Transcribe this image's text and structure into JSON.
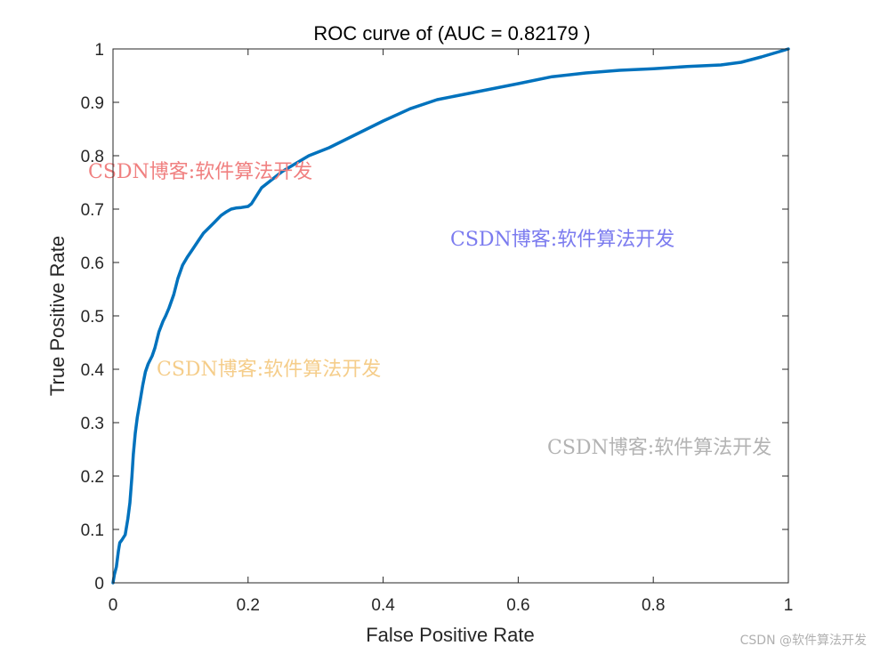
{
  "chart_data": {
    "type": "line",
    "title": "ROC curve of (AUC = 0.82179 )",
    "xlabel": "False Positive Rate",
    "ylabel": "True Positive Rate",
    "xlim": [
      0,
      1
    ],
    "ylim": [
      0,
      1
    ],
    "xticks": [
      0,
      0.2,
      0.4,
      0.6,
      0.8,
      1
    ],
    "yticks": [
      0,
      0.1,
      0.2,
      0.3,
      0.4,
      0.5,
      0.6,
      0.7,
      0.8,
      0.9,
      1
    ],
    "xtick_labels": [
      "0",
      "0.2",
      "0.4",
      "0.6",
      "0.8",
      "1"
    ],
    "ytick_labels": [
      "0",
      "0.1",
      "0.2",
      "0.3",
      "0.4",
      "0.5",
      "0.6",
      "0.7",
      "0.8",
      "0.9",
      "1"
    ],
    "grid": false,
    "line_color": "#0072BD",
    "series": [
      {
        "x": [
          0,
          0.002,
          0.005,
          0.008,
          0.01,
          0.013,
          0.018,
          0.022,
          0.025,
          0.028,
          0.03,
          0.033,
          0.036,
          0.04,
          0.044,
          0.048,
          0.052,
          0.058,
          0.062,
          0.068,
          0.074,
          0.078,
          0.083,
          0.09,
          0.096,
          0.103,
          0.11,
          0.118,
          0.126,
          0.134,
          0.142,
          0.15,
          0.16,
          0.168,
          0.175,
          0.182,
          0.19,
          0.2,
          0.205,
          0.21,
          0.215,
          0.22,
          0.235,
          0.25,
          0.27,
          0.29,
          0.32,
          0.36,
          0.4,
          0.44,
          0.48,
          0.52,
          0.56,
          0.6,
          0.65,
          0.7,
          0.75,
          0.8,
          0.85,
          0.9,
          0.93,
          0.96,
          1
        ],
        "y": [
          0,
          0.015,
          0.03,
          0.06,
          0.075,
          0.08,
          0.09,
          0.12,
          0.15,
          0.2,
          0.24,
          0.28,
          0.31,
          0.34,
          0.37,
          0.395,
          0.41,
          0.425,
          0.44,
          0.47,
          0.49,
          0.5,
          0.515,
          0.54,
          0.57,
          0.595,
          0.61,
          0.625,
          0.64,
          0.655,
          0.665,
          0.675,
          0.688,
          0.695,
          0.7,
          0.702,
          0.703,
          0.705,
          0.71,
          0.72,
          0.73,
          0.74,
          0.755,
          0.77,
          0.785,
          0.8,
          0.815,
          0.84,
          0.865,
          0.888,
          0.905,
          0.915,
          0.925,
          0.935,
          0.948,
          0.955,
          0.96,
          0.963,
          0.967,
          0.97,
          0.975,
          0.985,
          1
        ]
      }
    ]
  },
  "watermarks": [
    {
      "text": "CSDN博客:软件算法开发",
      "color": "#f08080"
    },
    {
      "text": "CSDN博客:软件算法开发",
      "color": "#7b7bef"
    },
    {
      "text": "CSDN博客:软件算法开发",
      "color": "#f5cd8a"
    },
    {
      "text": "CSDN博客:软件算法开发",
      "color": "#b3b3b3"
    }
  ],
  "credit": {
    "text": "CSDN @软件算法开发",
    "color": "#b0b0b0"
  }
}
